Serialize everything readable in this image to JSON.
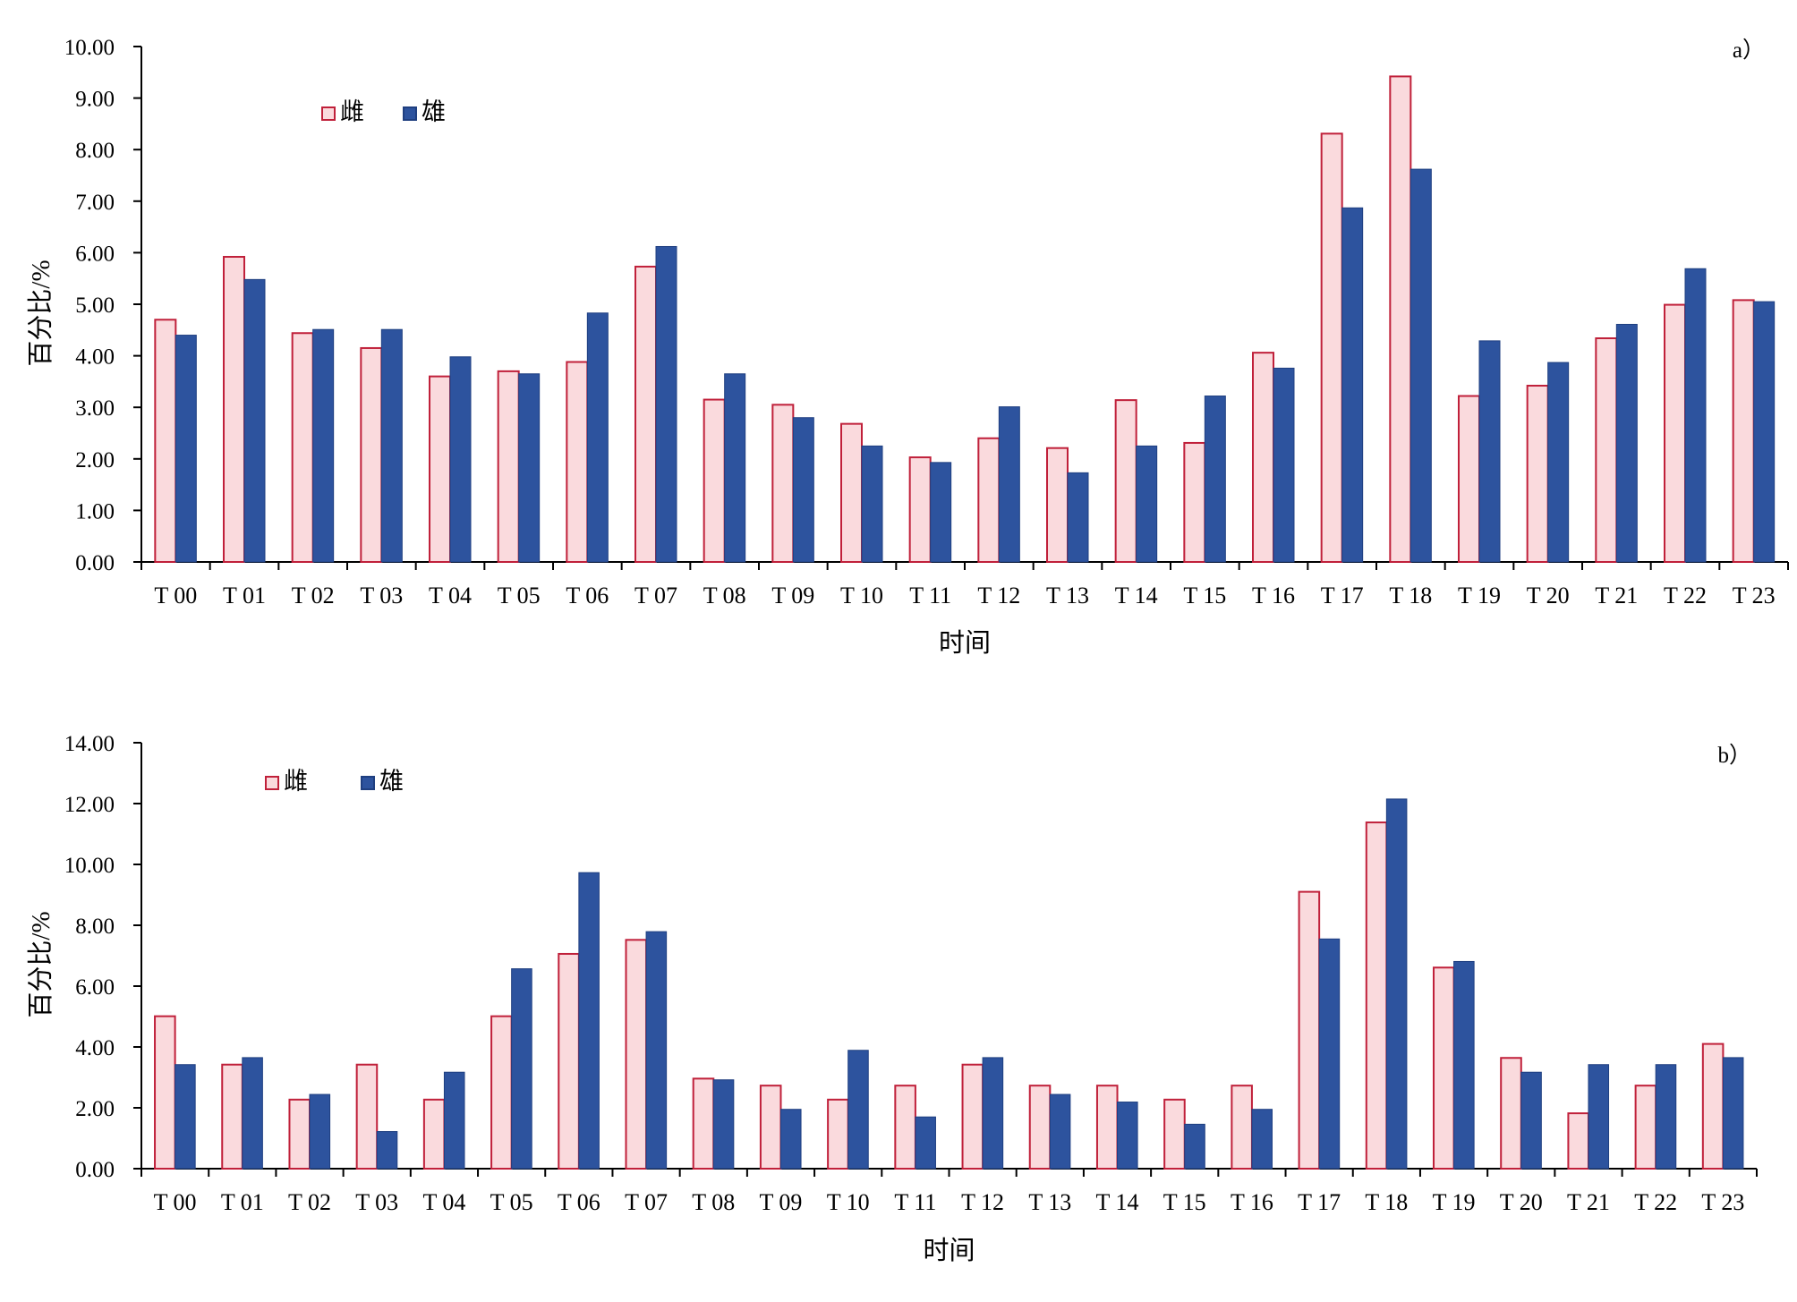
{
  "colors": {
    "female_fill": "#fadadd",
    "female_stroke": "#c0203a",
    "male_fill": "#2d539e",
    "male_stroke": "#1f3f80"
  },
  "chart_data": [
    {
      "type": "bar",
      "panel_label": "a）",
      "xlabel": "时间",
      "ylabel": "百分比/%",
      "ylim": [
        0,
        10
      ],
      "ytick_step": 1,
      "yticks": [
        "0.00",
        "1.00",
        "2.00",
        "3.00",
        "4.00",
        "5.00",
        "6.00",
        "7.00",
        "8.00",
        "9.00",
        "10.00"
      ],
      "legend_position": "top-left",
      "categories": [
        "T 00",
        "T 01",
        "T 02",
        "T 03",
        "T 04",
        "T 05",
        "T 06",
        "T 07",
        "T 08",
        "T 09",
        "T 10",
        "T 11",
        "T 12",
        "T 13",
        "T 14",
        "T 15",
        "T 16",
        "T 17",
        "T 18",
        "T 19",
        "T 20",
        "T 21",
        "T 22",
        "T 23"
      ],
      "series": [
        {
          "name": "雌",
          "values": [
            4.7,
            5.92,
            4.44,
            4.15,
            3.6,
            3.7,
            3.88,
            5.73,
            3.15,
            3.05,
            2.68,
            2.03,
            2.4,
            2.21,
            3.14,
            2.31,
            4.06,
            8.31,
            9.42,
            3.22,
            3.42,
            4.34,
            4.99,
            5.08
          ]
        },
        {
          "name": "雄",
          "values": [
            4.4,
            5.48,
            4.51,
            4.51,
            3.98,
            3.65,
            4.83,
            6.12,
            3.65,
            2.8,
            2.25,
            1.93,
            3.01,
            1.73,
            2.25,
            3.22,
            3.76,
            6.87,
            7.62,
            4.29,
            3.87,
            4.61,
            5.69,
            5.05
          ]
        }
      ]
    },
    {
      "type": "bar",
      "panel_label": "b）",
      "xlabel": "时间",
      "ylabel": "百分比/%",
      "ylim": [
        0,
        14
      ],
      "ytick_step": 2,
      "yticks": [
        "0.00",
        "2.00",
        "4.00",
        "6.00",
        "8.00",
        "10.00",
        "12.00",
        "14.00"
      ],
      "legend_position": "top-left",
      "categories": [
        "T 00",
        "T 01",
        "T 02",
        "T 03",
        "T 04",
        "T 05",
        "T 06",
        "T 07",
        "T 08",
        "T 09",
        "T 10",
        "T 11",
        "T 12",
        "T 13",
        "T 14",
        "T 15",
        "T 16",
        "T 17",
        "T 18",
        "T 19",
        "T 20",
        "T 21",
        "T 22",
        "T 23"
      ],
      "series": [
        {
          "name": "雌",
          "values": [
            5.01,
            3.42,
            2.27,
            3.42,
            2.27,
            5.01,
            7.06,
            7.52,
            2.96,
            2.73,
            2.27,
            2.73,
            3.42,
            2.73,
            2.73,
            2.27,
            2.73,
            9.1,
            11.38,
            6.61,
            3.64,
            1.82,
            2.73,
            4.1
          ]
        },
        {
          "name": "雄",
          "values": [
            3.42,
            3.65,
            2.44,
            1.22,
            3.17,
            6.57,
            9.73,
            7.79,
            2.92,
            1.95,
            3.89,
            1.7,
            3.65,
            2.44,
            2.19,
            1.46,
            1.95,
            7.55,
            12.15,
            6.81,
            3.17,
            3.42,
            3.42,
            3.65
          ]
        }
      ]
    }
  ]
}
